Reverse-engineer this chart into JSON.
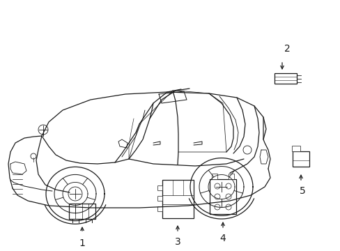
{
  "background_color": "#ffffff",
  "fig_width": 4.89,
  "fig_height": 3.6,
  "dpi": 100,
  "image_b64": ""
}
